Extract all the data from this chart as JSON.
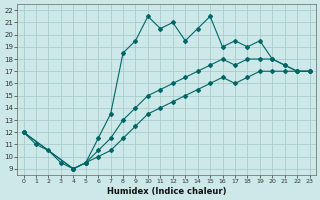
{
  "xlabel": "Humidex (Indice chaleur)",
  "background_color": "#cce8e8",
  "grid_color": "#aacccc",
  "line_color": "#006666",
  "xlim": [
    -0.5,
    23.5
  ],
  "ylim": [
    8.5,
    22.5
  ],
  "xticks": [
    0,
    1,
    2,
    3,
    4,
    5,
    6,
    7,
    8,
    9,
    10,
    11,
    12,
    13,
    14,
    15,
    16,
    17,
    18,
    19,
    20,
    21,
    22,
    23
  ],
  "yticks": [
    9,
    10,
    11,
    12,
    13,
    14,
    15,
    16,
    17,
    18,
    19,
    20,
    21,
    22
  ],
  "line1_x": [
    0,
    1,
    2,
    3,
    4,
    5,
    6,
    7,
    8,
    9,
    10,
    11,
    12,
    13,
    14,
    15,
    16,
    17,
    18,
    19,
    20,
    21,
    22,
    23
  ],
  "line1_y": [
    12,
    11,
    10.5,
    9.5,
    9,
    9.5,
    11.5,
    13.5,
    18.5,
    19.5,
    21.5,
    20.5,
    21,
    19.5,
    20.5,
    21.5,
    19,
    19.5,
    19,
    19.5,
    18,
    17.5,
    17,
    17
  ],
  "line2_x": [
    0,
    4,
    5,
    6,
    7,
    8,
    9,
    10,
    11,
    12,
    13,
    14,
    15,
    16,
    17,
    18,
    19,
    20,
    21,
    22,
    23
  ],
  "line2_y": [
    12,
    9,
    9.5,
    10.5,
    11.5,
    13,
    14,
    15,
    15.5,
    16,
    16.5,
    17,
    17.5,
    18,
    17.5,
    18,
    18,
    18,
    17.5,
    17,
    17
  ],
  "line3_x": [
    0,
    4,
    5,
    6,
    7,
    8,
    9,
    10,
    11,
    12,
    13,
    14,
    15,
    16,
    17,
    18,
    19,
    20,
    21,
    22,
    23
  ],
  "line3_y": [
    12,
    9,
    9.5,
    10,
    10.5,
    11.5,
    12.5,
    13.5,
    14,
    14.5,
    15,
    15.5,
    16,
    16.5,
    16,
    16.5,
    17,
    17,
    17,
    17,
    17
  ]
}
